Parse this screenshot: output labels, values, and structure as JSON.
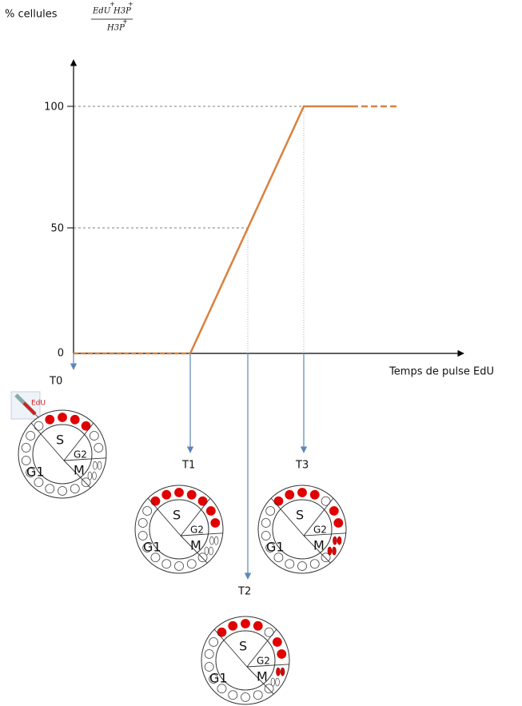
{
  "y_axis": {
    "prefix": "% cellules",
    "numerator": [
      "EdU",
      "H3P"
    ],
    "denominator": "H3P",
    "sup": "+",
    "ticks": [
      "0",
      "50",
      "100"
    ]
  },
  "x_axis": {
    "label": "Temps de pulse EdU"
  },
  "icon_label": "EdU",
  "times": [
    "T0",
    "T1",
    "T2",
    "T3"
  ],
  "phases": {
    "s": "S",
    "g1": "G1",
    "g2": "G2",
    "m": "M"
  }
}
